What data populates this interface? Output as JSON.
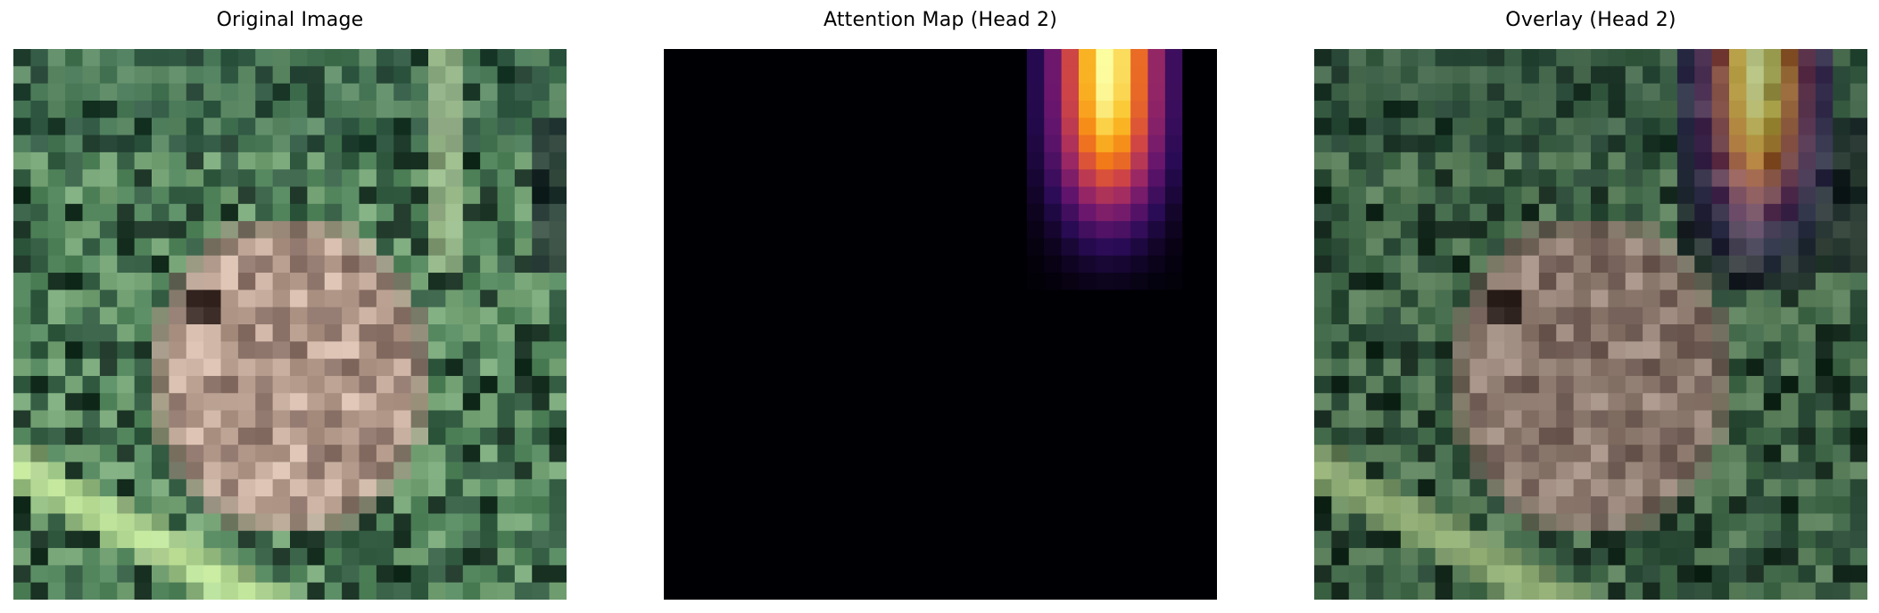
{
  "panels": [
    {
      "title": "Original Image"
    },
    {
      "title": "Attention Map (Head 2)"
    },
    {
      "title": "Overlay (Head 2)"
    }
  ],
  "attention": {
    "colormap": "inferno",
    "head": 2,
    "focus": "top-right region"
  }
}
